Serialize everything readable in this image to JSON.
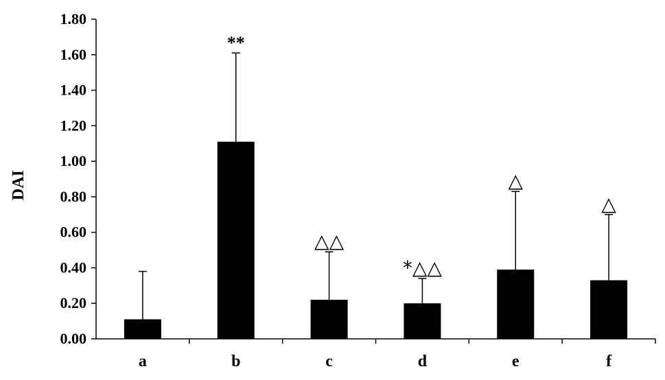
{
  "chart_data": {
    "type": "bar",
    "title": "",
    "xlabel": "",
    "ylabel": "DAI",
    "ylim": [
      0,
      1.8
    ],
    "yticks": [
      "0.00",
      "0.20",
      "0.40",
      "0.60",
      "0.80",
      "1.00",
      "1.20",
      "1.40",
      "1.60",
      "1.80"
    ],
    "categories": [
      "a",
      "b",
      "c",
      "d",
      "e",
      "f"
    ],
    "values": [
      0.11,
      1.11,
      0.22,
      0.2,
      0.39,
      0.33
    ],
    "error_upper": [
      0.38,
      1.61,
      0.49,
      0.34,
      0.83,
      0.7
    ],
    "annotations": [
      "",
      "**",
      "△△",
      "*△△",
      "△",
      "△"
    ],
    "bar_color": "#000000",
    "grid": false,
    "legend": "none"
  }
}
